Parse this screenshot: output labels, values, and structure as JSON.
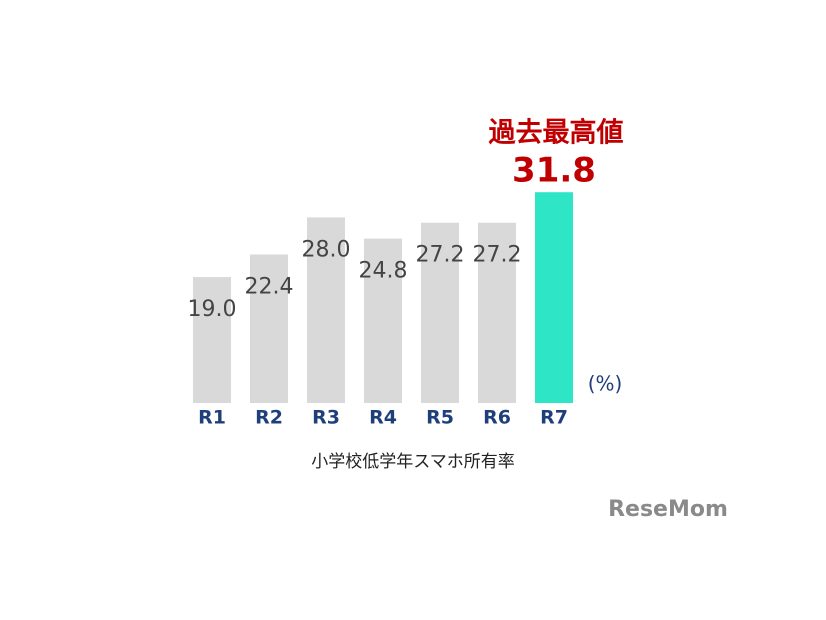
{
  "chart_data": {
    "type": "bar",
    "annotation": "過去最高値",
    "categories": [
      "R1",
      "R2",
      "R3",
      "R4",
      "R5",
      "R6",
      "R7"
    ],
    "values": [
      19.0,
      22.4,
      28.0,
      24.8,
      27.2,
      27.2,
      31.8
    ],
    "value_labels": [
      "19.0",
      "22.4",
      "28.0",
      "24.8",
      "27.2",
      "27.2",
      "31.8"
    ],
    "colors": [
      "#d9d9d9",
      "#d9d9d9",
      "#d9d9d9",
      "#d9d9d9",
      "#d9d9d9",
      "#d9d9d9",
      "#2ee6c6"
    ],
    "value_label_colors": [
      "#444444",
      "#444444",
      "#444444",
      "#444444",
      "#444444",
      "#444444",
      "#c00000"
    ],
    "ylim": [
      0,
      35
    ],
    "unit": "(%)",
    "caption": "小学校低学年スマホ所有率",
    "watermark": "ReseMom"
  }
}
